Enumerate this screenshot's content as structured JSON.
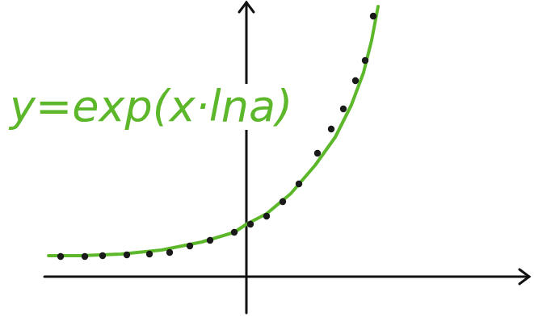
{
  "chart_data": {
    "type": "line",
    "annotations": [
      "y=exp(x·lna)"
    ],
    "xlim": [
      -25,
      35
    ],
    "ylim": [
      0,
      34
    ],
    "xticks": [],
    "yticks": [],
    "tick_labels": false,
    "grid": false,
    "series": [
      {
        "type": "line",
        "color": "#5cb82a",
        "line_style": "solid",
        "x": [
          -24.5,
          -20.5,
          -15.5,
          -10.5,
          -5.5,
          -1.5,
          0,
          2.5,
          5.5,
          8.5,
          11,
          13,
          14.5,
          15.5,
          16.3
        ],
        "values": [
          2.6,
          2.6,
          2.8,
          3.3,
          4.3,
          5.5,
          6.5,
          7.8,
          10.3,
          13.8,
          17.3,
          21.3,
          25.3,
          29.3,
          33.5
        ]
      },
      {
        "type": "scatter",
        "color": "#1a1a1a",
        "marker": "circle",
        "x": [
          -23,
          -20,
          -17.8,
          -14.8,
          -12,
          -9.5,
          -7,
          -4.5,
          -1.5,
          0.5,
          2.5,
          4.5,
          6.5,
          8.8,
          10.5,
          12,
          13.5,
          14.7,
          15.7
        ],
        "values": [
          2.5,
          2.5,
          2.6,
          2.7,
          2.8,
          3,
          3.8,
          4.5,
          5.5,
          6.5,
          7.5,
          9.3,
          11.5,
          15.3,
          18.3,
          20.8,
          24.3,
          26.8,
          32.3
        ]
      }
    ]
  }
}
